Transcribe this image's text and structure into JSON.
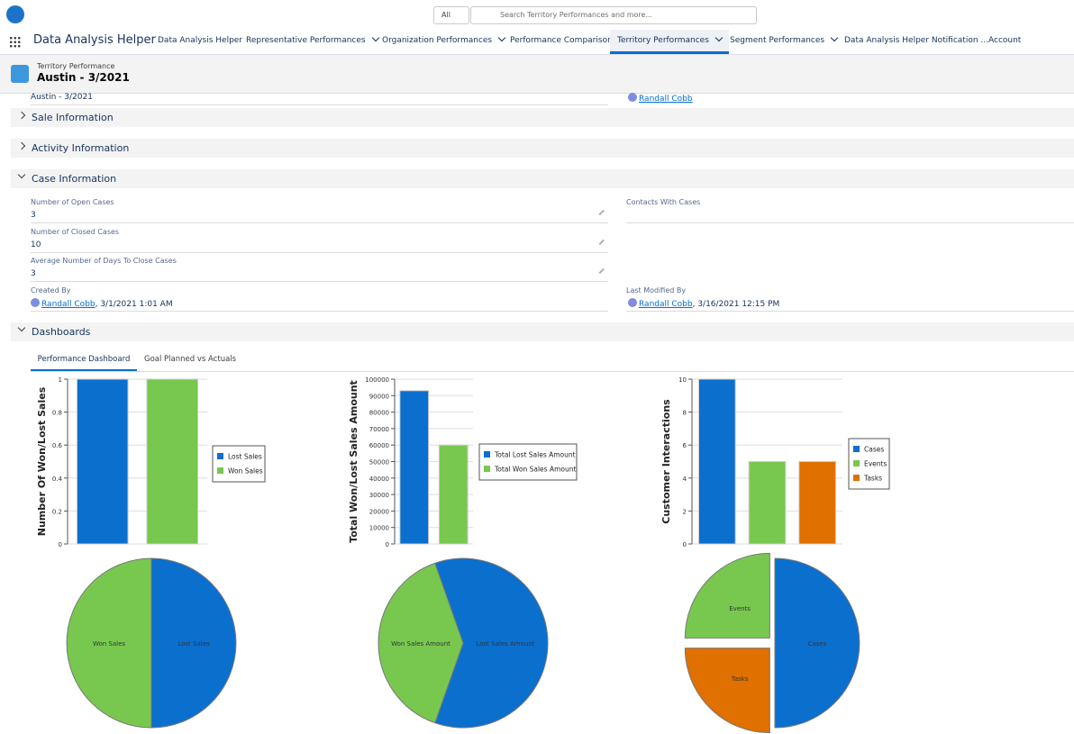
{
  "header": {
    "search_scope": "All",
    "search_placeholder": "Search Territory Performances and more..."
  },
  "nav": {
    "app_name": "Data Analysis Helper",
    "active_tab": 4,
    "tabs": [
      {
        "label": "Data Analysis Helper",
        "menu": false
      },
      {
        "label": "Representative Performances",
        "menu": true
      },
      {
        "label": "Organization Performances",
        "menu": true
      },
      {
        "label": "Performance Comparison",
        "menu": false
      },
      {
        "label": "Territory Performances",
        "menu": true
      },
      {
        "label": "Segment Performances",
        "menu": true
      },
      {
        "label": "Data Analysis Helper Notification ...",
        "menu": false
      },
      {
        "label": "Account Performances",
        "menu": false
      }
    ]
  },
  "record": {
    "object": "Territory Performance",
    "name": "Austin - 3/2021"
  },
  "top_fields": {
    "name": "Austin - 3/2021",
    "owner": "Randall Cobb"
  },
  "sections": {
    "sale": "Sale Information",
    "activity": "Activity Information",
    "case": "Case Information",
    "dashboards": "Dashboards"
  },
  "case_fields": [
    {
      "label": "Number of Open Cases",
      "value": "3"
    },
    {
      "label": "Number of Closed Cases",
      "value": "10"
    },
    {
      "label": "Average Number of Days To Close Cases",
      "value": "3"
    }
  ],
  "contacts_label": "Contacts With Cases",
  "created": {
    "label": "Created By",
    "by": "Randall Cobb",
    "date": ", 3/1/2021 1:01 AM"
  },
  "modified": {
    "label": "Last Modified By",
    "by": "Randall Cobb",
    "date": ", 3/16/2021 12:15 PM"
  },
  "dashboard_tabs": [
    "Performance Dashboard",
    "Goal Planned vs Actuals"
  ],
  "chart_data": [
    {
      "type": "bar",
      "ylabel": "Number Of Won/Lost Sales",
      "ylim": [
        0,
        1
      ],
      "yticks": [
        0,
        0.2,
        0.4,
        0.6,
        0.8,
        1
      ],
      "grid": true,
      "series": [
        {
          "name": "Lost Sales",
          "color": "#0b6fce",
          "values": [
            1
          ]
        },
        {
          "name": "Won Sales",
          "color": "#78c850",
          "values": [
            1
          ]
        }
      ]
    },
    {
      "type": "pie",
      "categories": [
        "Lost Sales",
        "Won Sales"
      ],
      "values": [
        1,
        1
      ],
      "colors": [
        "#0b6fce",
        "#78c850"
      ]
    },
    {
      "type": "bar",
      "ylabel": "Total Won/Lost Sales Amount",
      "ylim": [
        0,
        100000
      ],
      "yticks": [
        0,
        10000,
        20000,
        30000,
        40000,
        50000,
        60000,
        70000,
        80000,
        90000,
        100000
      ],
      "grid": true,
      "series": [
        {
          "name": "Total Lost Sales Amount",
          "color": "#0b6fce",
          "values": [
            93000
          ]
        },
        {
          "name": "Total Won Sales Amount",
          "color": "#78c850",
          "values": [
            60000
          ]
        }
      ]
    },
    {
      "type": "pie",
      "categories": [
        "Lost Sales Amount",
        "Won Sales Amount"
      ],
      "values": [
        93000,
        60000
      ],
      "colors": [
        "#0b6fce",
        "#78c850"
      ]
    },
    {
      "type": "bar",
      "ylabel": "Customer Interactions",
      "ylim": [
        0,
        10
      ],
      "yticks": [
        0,
        2,
        4,
        6,
        8,
        10
      ],
      "grid": true,
      "series": [
        {
          "name": "Cases",
          "color": "#0b6fce",
          "values": [
            10
          ]
        },
        {
          "name": "Events",
          "color": "#78c850",
          "values": [
            5
          ]
        },
        {
          "name": "Tasks",
          "color": "#e07000",
          "values": [
            5
          ]
        }
      ]
    },
    {
      "type": "pie",
      "categories": [
        "Cases",
        "Tasks",
        "Events"
      ],
      "values": [
        10,
        5,
        5
      ],
      "colors": [
        "#0b6fce",
        "#e07000",
        "#78c850"
      ],
      "exploded": [
        false,
        true,
        true
      ]
    }
  ]
}
